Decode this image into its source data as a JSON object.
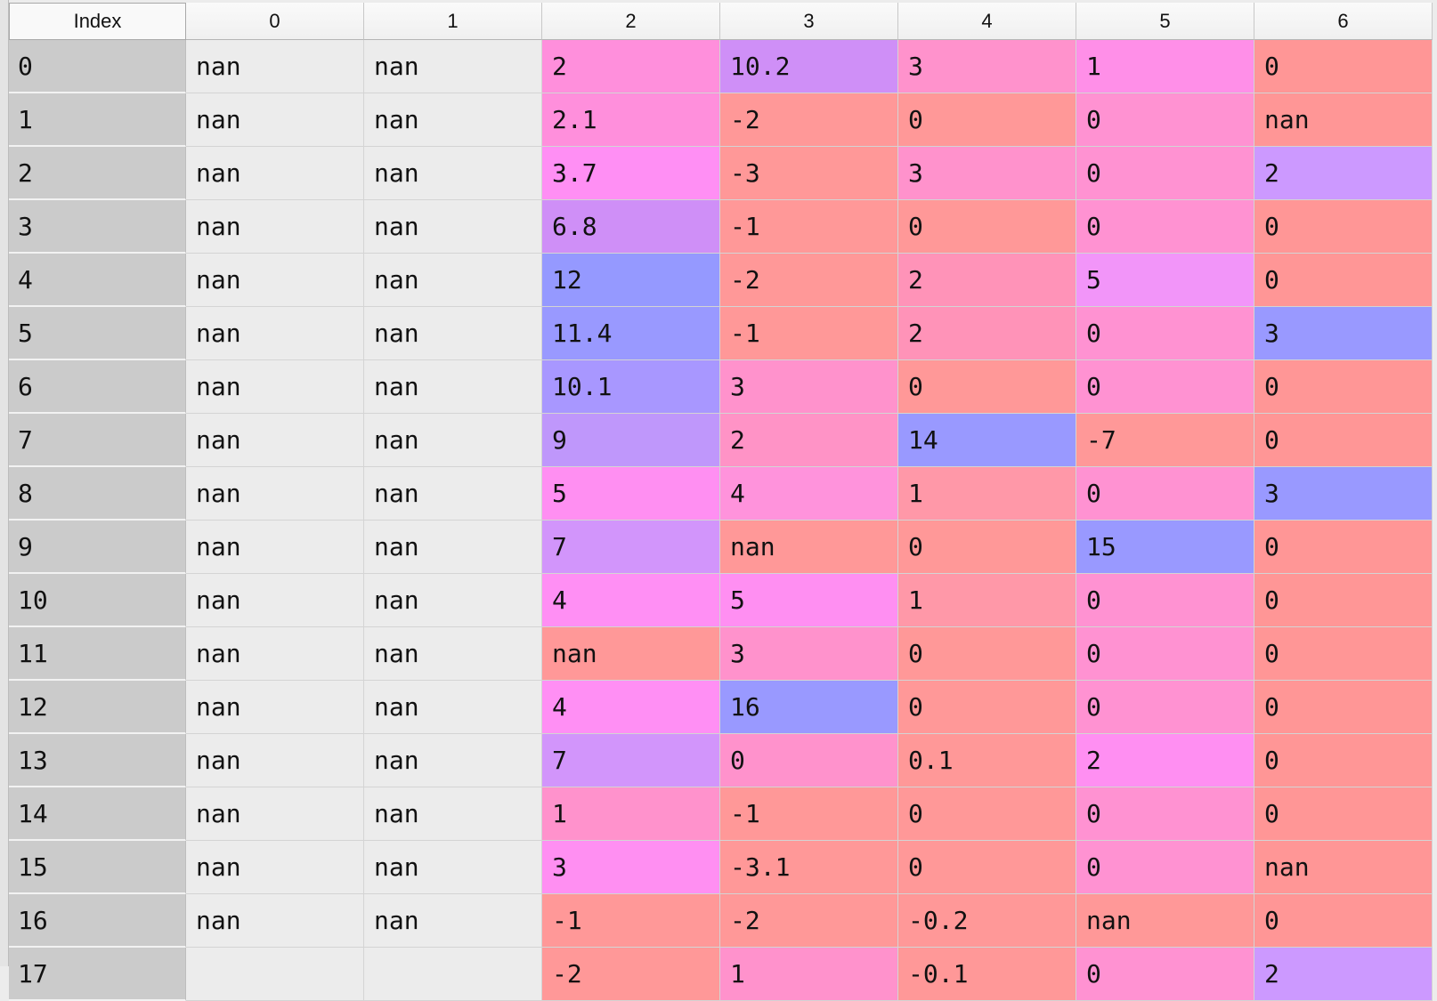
{
  "header": {
    "index_label": "Index",
    "columns": [
      "0",
      "1",
      "2",
      "3",
      "4",
      "5",
      "6"
    ]
  },
  "colors": {
    "plain": "#ececec",
    "index": "#cbcbcb",
    "high_blue": "#9999ff",
    "mid_purple": "#cc99ff",
    "pink": "#ff99dd",
    "salmon": "#ff9999"
  },
  "rows": [
    {
      "index": "0",
      "cells": [
        {
          "v": "nan",
          "bg": ""
        },
        {
          "v": "nan",
          "bg": ""
        },
        {
          "v": "2",
          "bg": "#ff8fdc"
        },
        {
          "v": "10.2",
          "bg": "#cf8ff7"
        },
        {
          "v": "3",
          "bg": "#ff92cc"
        },
        {
          "v": "1",
          "bg": "#ff8fe8"
        },
        {
          "v": "0",
          "bg": "#ff9696"
        }
      ]
    },
    {
      "index": "1",
      "cells": [
        {
          "v": "nan",
          "bg": ""
        },
        {
          "v": "nan",
          "bg": ""
        },
        {
          "v": "2.1",
          "bg": "#ff8fdc"
        },
        {
          "v": "-2",
          "bg": "#ff9898"
        },
        {
          "v": "0",
          "bg": "#ff9898"
        },
        {
          "v": "0",
          "bg": "#ff92d2"
        },
        {
          "v": "nan",
          "bg": "#ff9696"
        }
      ]
    },
    {
      "index": "2",
      "cells": [
        {
          "v": "nan",
          "bg": ""
        },
        {
          "v": "nan",
          "bg": ""
        },
        {
          "v": "3.7",
          "bg": "#ff8ff4"
        },
        {
          "v": "-3",
          "bg": "#ff9898"
        },
        {
          "v": "3",
          "bg": "#ff92cc"
        },
        {
          "v": "0",
          "bg": "#ff92d2"
        },
        {
          "v": "2",
          "bg": "#cc99ff"
        }
      ]
    },
    {
      "index": "3",
      "cells": [
        {
          "v": "nan",
          "bg": ""
        },
        {
          "v": "nan",
          "bg": ""
        },
        {
          "v": "6.8",
          "bg": "#cf8ff7"
        },
        {
          "v": "-1",
          "bg": "#ff9898"
        },
        {
          "v": "0",
          "bg": "#ff9898"
        },
        {
          "v": "0",
          "bg": "#ff92d2"
        },
        {
          "v": "0",
          "bg": "#ff9696"
        }
      ]
    },
    {
      "index": "4",
      "cells": [
        {
          "v": "nan",
          "bg": ""
        },
        {
          "v": "nan",
          "bg": ""
        },
        {
          "v": "12",
          "bg": "#9599ff"
        },
        {
          "v": "-2",
          "bg": "#ff9898"
        },
        {
          "v": "2",
          "bg": "#ff93b8"
        },
        {
          "v": "5",
          "bg": "#f295f9"
        },
        {
          "v": "0",
          "bg": "#ff9696"
        }
      ]
    },
    {
      "index": "5",
      "cells": [
        {
          "v": "nan",
          "bg": ""
        },
        {
          "v": "nan",
          "bg": ""
        },
        {
          "v": "11.4",
          "bg": "#9999ff"
        },
        {
          "v": "-1",
          "bg": "#ff9898"
        },
        {
          "v": "2",
          "bg": "#ff93b8"
        },
        {
          "v": "0",
          "bg": "#ff92d2"
        },
        {
          "v": "3",
          "bg": "#9999ff"
        }
      ]
    },
    {
      "index": "6",
      "cells": [
        {
          "v": "nan",
          "bg": ""
        },
        {
          "v": "nan",
          "bg": ""
        },
        {
          "v": "10.1",
          "bg": "#a897ff"
        },
        {
          "v": "3",
          "bg": "#ff92cc"
        },
        {
          "v": "0",
          "bg": "#ff9898"
        },
        {
          "v": "0",
          "bg": "#ff92d2"
        },
        {
          "v": "0",
          "bg": "#ff9696"
        }
      ]
    },
    {
      "index": "7",
      "cells": [
        {
          "v": "nan",
          "bg": ""
        },
        {
          "v": "nan",
          "bg": ""
        },
        {
          "v": "9",
          "bg": "#bf97fb"
        },
        {
          "v": "2",
          "bg": "#ff93c6"
        },
        {
          "v": "14",
          "bg": "#9999ff"
        },
        {
          "v": "-7",
          "bg": "#ff9898"
        },
        {
          "v": "0",
          "bg": "#ff9696"
        }
      ]
    },
    {
      "index": "8",
      "cells": [
        {
          "v": "nan",
          "bg": ""
        },
        {
          "v": "nan",
          "bg": ""
        },
        {
          "v": "5",
          "bg": "#ff8ff2"
        },
        {
          "v": "4",
          "bg": "#ff93dc"
        },
        {
          "v": "1",
          "bg": "#ff98a8"
        },
        {
          "v": "0",
          "bg": "#ff92d2"
        },
        {
          "v": "3",
          "bg": "#9999ff"
        }
      ]
    },
    {
      "index": "9",
      "cells": [
        {
          "v": "nan",
          "bg": ""
        },
        {
          "v": "nan",
          "bg": ""
        },
        {
          "v": "7",
          "bg": "#d295fb"
        },
        {
          "v": "nan",
          "bg": "#ff9898"
        },
        {
          "v": "0",
          "bg": "#ff9898"
        },
        {
          "v": "15",
          "bg": "#9999ff"
        },
        {
          "v": "0",
          "bg": "#ff9696"
        }
      ]
    },
    {
      "index": "10",
      "cells": [
        {
          "v": "nan",
          "bg": ""
        },
        {
          "v": "nan",
          "bg": ""
        },
        {
          "v": "4",
          "bg": "#ff8ff4"
        },
        {
          "v": "5",
          "bg": "#ff8ff2"
        },
        {
          "v": "1",
          "bg": "#ff98a8"
        },
        {
          "v": "0",
          "bg": "#ff92d2"
        },
        {
          "v": "0",
          "bg": "#ff9696"
        }
      ]
    },
    {
      "index": "11",
      "cells": [
        {
          "v": "nan",
          "bg": ""
        },
        {
          "v": "nan",
          "bg": ""
        },
        {
          "v": "nan",
          "bg": "#ff9898"
        },
        {
          "v": "3",
          "bg": "#ff92cc"
        },
        {
          "v": "0",
          "bg": "#ff9898"
        },
        {
          "v": "0",
          "bg": "#ff92d2"
        },
        {
          "v": "0",
          "bg": "#ff9696"
        }
      ]
    },
    {
      "index": "12",
      "cells": [
        {
          "v": "nan",
          "bg": ""
        },
        {
          "v": "nan",
          "bg": ""
        },
        {
          "v": "4",
          "bg": "#ff8ff4"
        },
        {
          "v": "16",
          "bg": "#9999ff"
        },
        {
          "v": "0",
          "bg": "#ff9898"
        },
        {
          "v": "0",
          "bg": "#ff92d2"
        },
        {
          "v": "0",
          "bg": "#ff9696"
        }
      ]
    },
    {
      "index": "13",
      "cells": [
        {
          "v": "nan",
          "bg": ""
        },
        {
          "v": "nan",
          "bg": ""
        },
        {
          "v": "7",
          "bg": "#d295fb"
        },
        {
          "v": "0",
          "bg": "#ff92cc"
        },
        {
          "v": "0.1",
          "bg": "#ff9898"
        },
        {
          "v": "2",
          "bg": "#ff8ff2"
        },
        {
          "v": "0",
          "bg": "#ff9696"
        }
      ]
    },
    {
      "index": "14",
      "cells": [
        {
          "v": "nan",
          "bg": ""
        },
        {
          "v": "nan",
          "bg": ""
        },
        {
          "v": "1",
          "bg": "#ff92cc"
        },
        {
          "v": "-1",
          "bg": "#ff9898"
        },
        {
          "v": "0",
          "bg": "#ff9898"
        },
        {
          "v": "0",
          "bg": "#ff92d2"
        },
        {
          "v": "0",
          "bg": "#ff9696"
        }
      ]
    },
    {
      "index": "15",
      "cells": [
        {
          "v": "nan",
          "bg": ""
        },
        {
          "v": "nan",
          "bg": ""
        },
        {
          "v": "3",
          "bg": "#ff8ff2"
        },
        {
          "v": "-3.1",
          "bg": "#ff9898"
        },
        {
          "v": "0",
          "bg": "#ff9898"
        },
        {
          "v": "0",
          "bg": "#ff92d2"
        },
        {
          "v": "nan",
          "bg": "#ff9696"
        }
      ]
    },
    {
      "index": "16",
      "cells": [
        {
          "v": "nan",
          "bg": ""
        },
        {
          "v": "nan",
          "bg": ""
        },
        {
          "v": "-1",
          "bg": "#ff9898"
        },
        {
          "v": "-2",
          "bg": "#ff9898"
        },
        {
          "v": "-0.2",
          "bg": "#ff9898"
        },
        {
          "v": "nan",
          "bg": "#ff9898"
        },
        {
          "v": "0",
          "bg": "#ff9696"
        }
      ]
    },
    {
      "index": "17",
      "cells": [
        {
          "v": "",
          "bg": ""
        },
        {
          "v": "",
          "bg": ""
        },
        {
          "v": "-2",
          "bg": "#ff9898"
        },
        {
          "v": "1",
          "bg": "#ff92cc"
        },
        {
          "v": "-0.1",
          "bg": "#ff9898"
        },
        {
          "v": "0",
          "bg": "#ff92d2"
        },
        {
          "v": "2",
          "bg": "#cc99ff"
        }
      ]
    }
  ]
}
